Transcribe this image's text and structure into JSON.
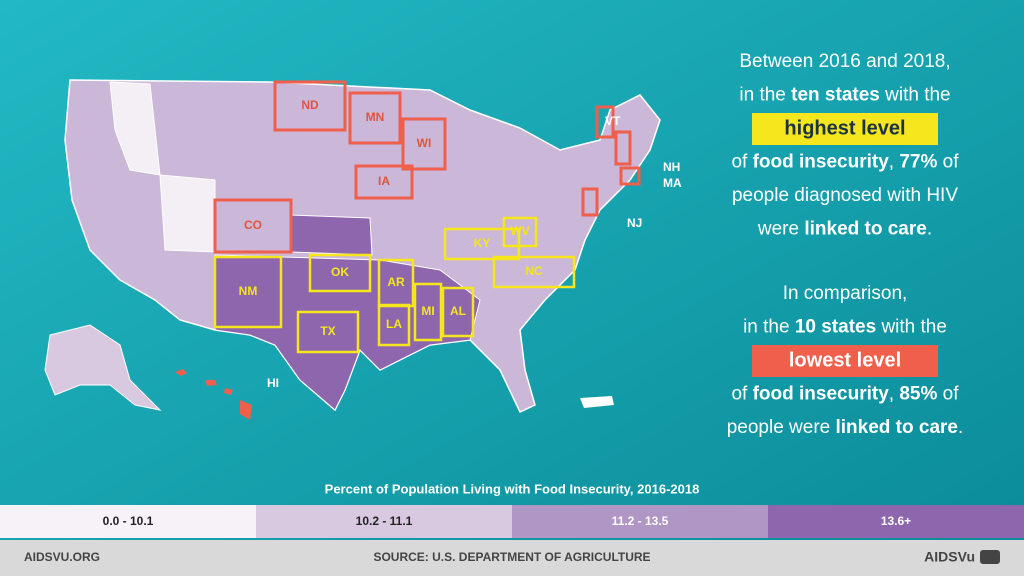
{
  "map": {
    "low_states": [
      "ND",
      "MN",
      "WI",
      "IA",
      "CO",
      "VT",
      "NH",
      "MA",
      "NJ",
      "HI"
    ],
    "high_states": [
      "OK",
      "AR",
      "KY",
      "WV",
      "NC",
      "NM",
      "TX",
      "LA",
      "MI",
      "AL"
    ]
  },
  "text": {
    "paragraphs": [
      {
        "lines": [
          [
            {
              "text": "Between 2016 and 2018,",
              "bold": false
            }
          ],
          [
            {
              "text": "in the ",
              "bold": false
            },
            {
              "text": "ten states",
              "bold": true
            },
            {
              "text": " with the",
              "bold": false
            }
          ],
          {
            "highlight": "highest level",
            "color": "#f5e61d",
            "text_color": "#1a3340"
          },
          [
            {
              "text": "of ",
              "bold": false
            },
            {
              "text": "food insecurity",
              "bold": true
            },
            {
              "text": ", ",
              "bold": false
            },
            {
              "text": "77%",
              "bold": true
            },
            {
              "text": " of",
              "bold": false
            }
          ],
          [
            {
              "text": "people diagnosed with HIV",
              "bold": false
            }
          ],
          [
            {
              "text": "were ",
              "bold": false
            },
            {
              "text": "linked to care",
              "bold": true
            },
            {
              "text": ".",
              "bold": false
            }
          ]
        ]
      },
      {
        "lines": [
          [
            {
              "text": "In comparison,",
              "bold": false
            }
          ],
          [
            {
              "text": "in the ",
              "bold": false
            },
            {
              "text": "10 states",
              "bold": true
            },
            {
              "text": " with the",
              "bold": false
            }
          ],
          {
            "highlight": "lowest level",
            "color": "#ef5f4c",
            "text_color": "#ffffff"
          },
          [
            {
              "text": "of ",
              "bold": false
            },
            {
              "text": "food insecurity",
              "bold": true
            },
            {
              "text": ", ",
              "bold": false
            },
            {
              "text": "85%",
              "bold": true
            },
            {
              "text": " of",
              "bold": false
            }
          ],
          [
            {
              "text": "people were ",
              "bold": false
            },
            {
              "text": "linked to care",
              "bold": true
            },
            {
              "text": ".",
              "bold": false
            }
          ]
        ]
      }
    ]
  },
  "legend": {
    "title": "Percent of Population Living with Food Insecurity, 2016-2018",
    "items": [
      {
        "label": "0.0 - 10.1",
        "color": "#f7f2f7"
      },
      {
        "label": "10.2 - 11.1",
        "color": "#d8c8e0"
      },
      {
        "label": "11.2 - 13.5",
        "color": "#b096c4"
      },
      {
        "label": "13.6+",
        "color": "#8e66ad"
      }
    ]
  },
  "footer": {
    "left": "AIDSVU.ORG",
    "center": "SOURCE: U.S. DEPARTMENT OF AGRICULTURE",
    "right": "AIDSVu"
  }
}
